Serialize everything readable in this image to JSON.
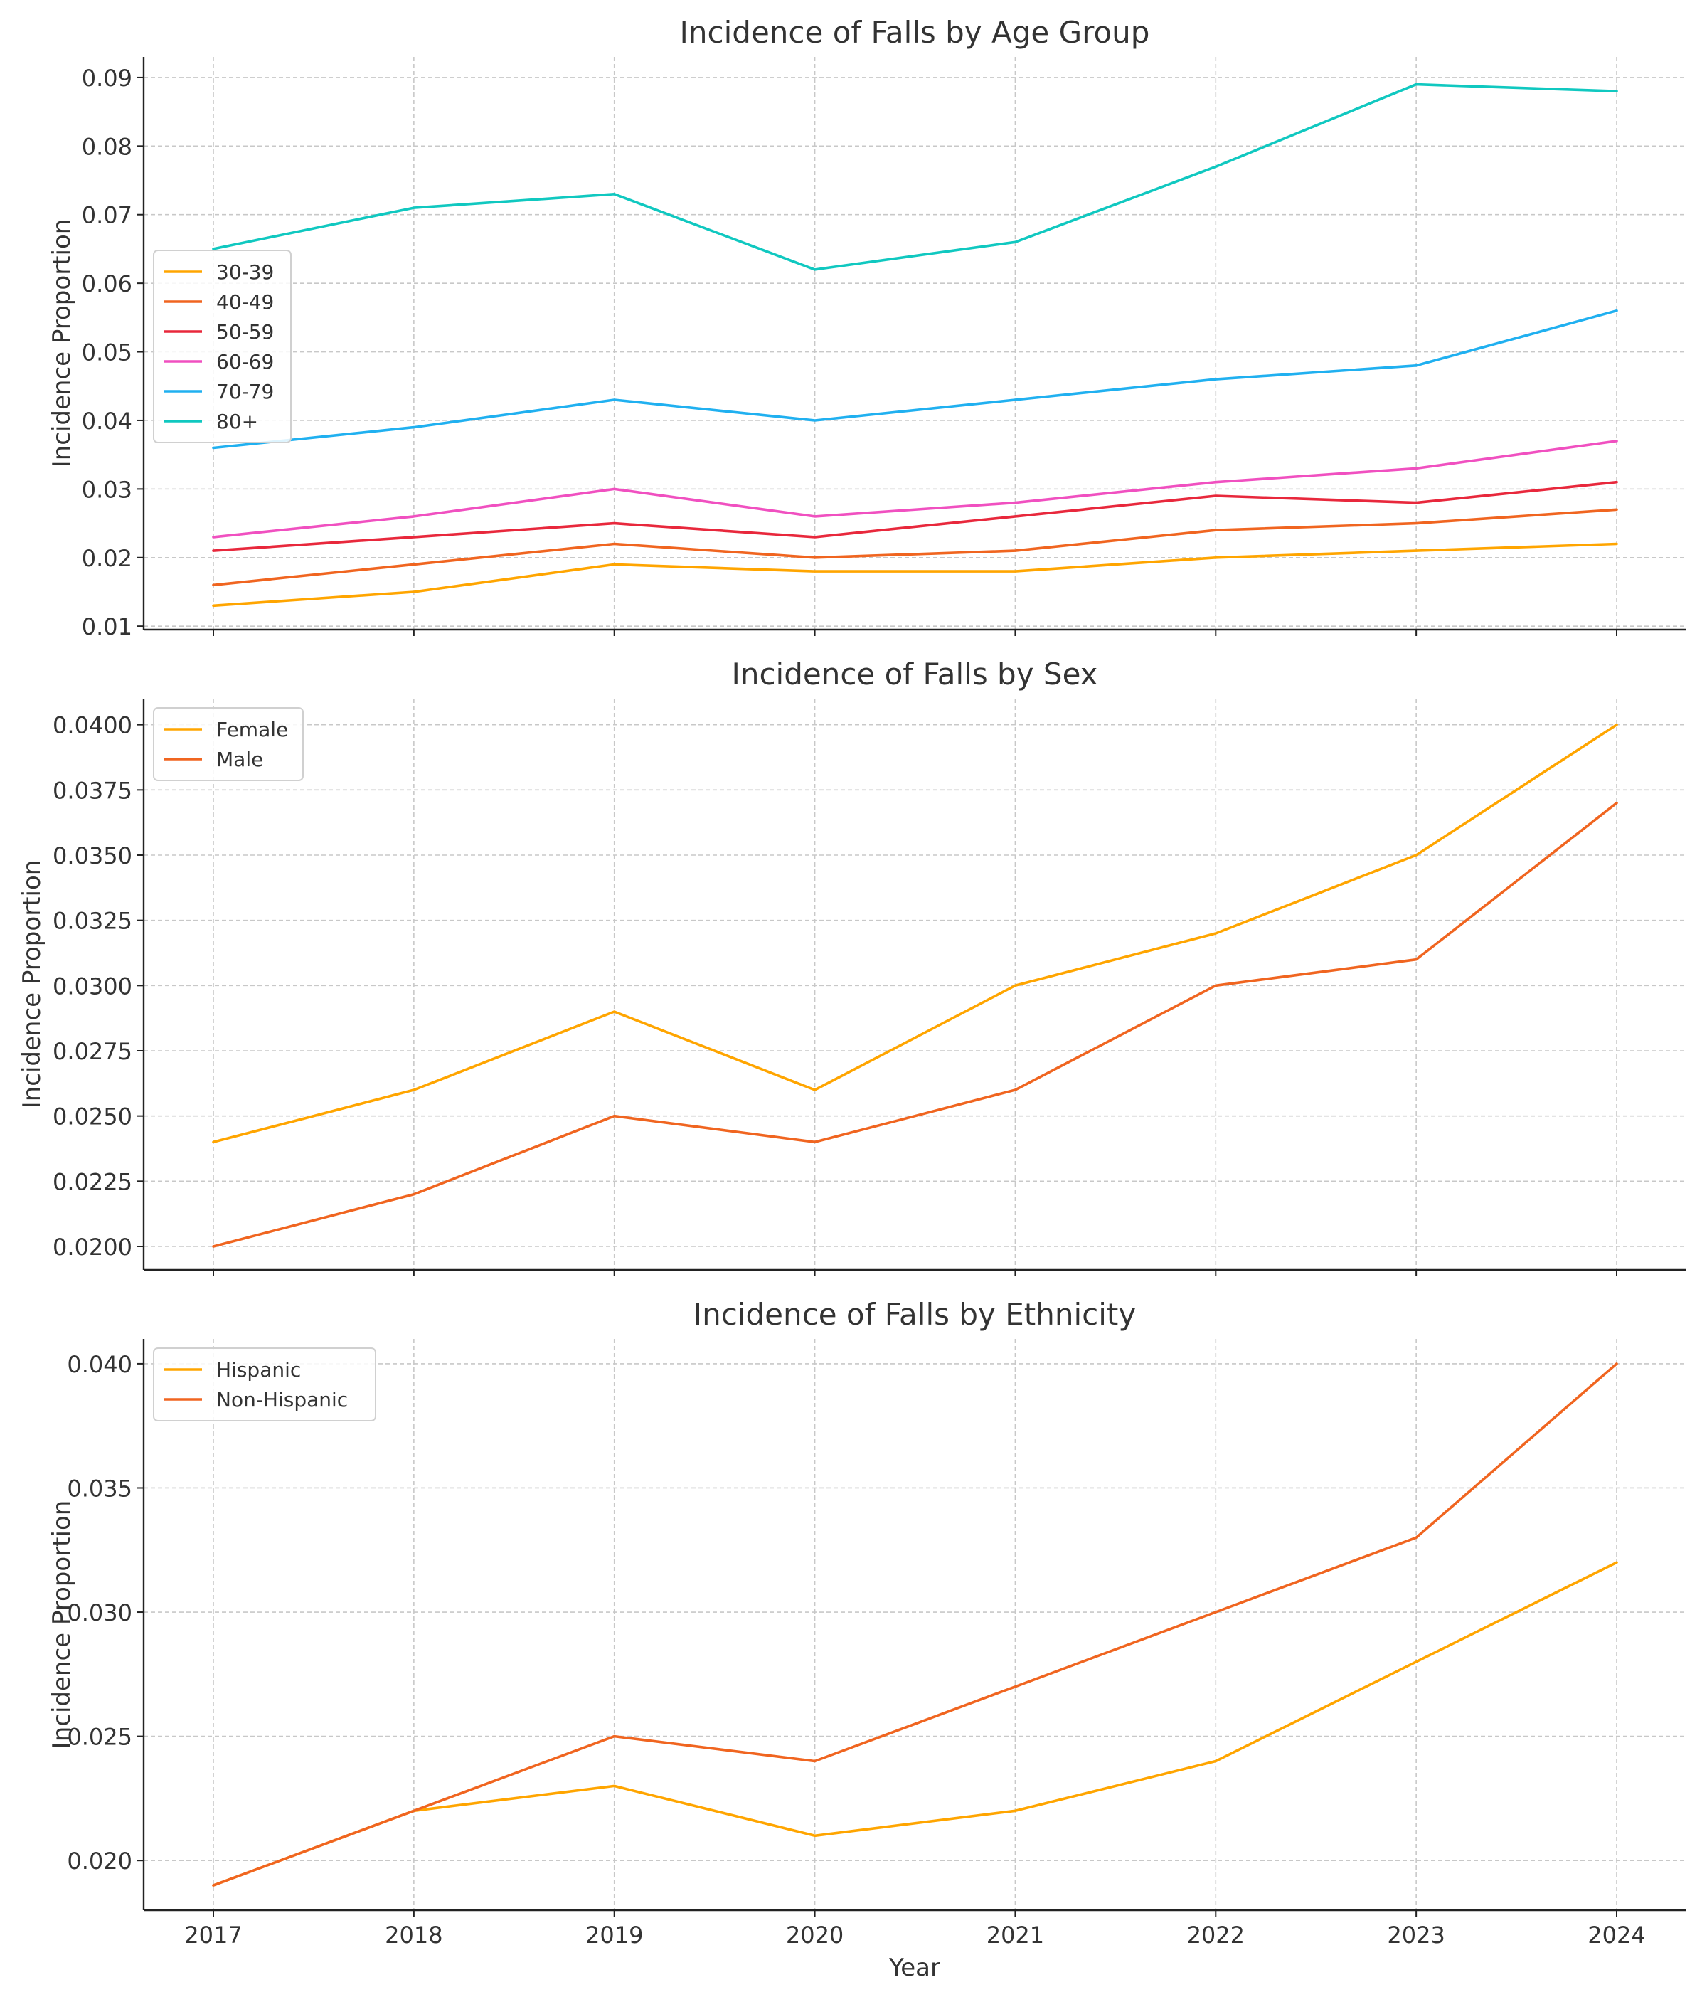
{
  "chart_data": [
    {
      "type": "line",
      "title": "Incidence of Falls by Age Group",
      "xlabel": "",
      "ylabel": "Incidence Proportion",
      "x": [
        2017,
        2018,
        2019,
        2020,
        2021,
        2022,
        2023,
        2024
      ],
      "ylim": [
        0.0095,
        0.093
      ],
      "yticks": [
        "0.01",
        "0.02",
        "0.03",
        "0.04",
        "0.05",
        "0.06",
        "0.07",
        "0.08",
        "0.09"
      ],
      "grid": true,
      "legend_position": "center-left",
      "series": [
        {
          "name": "30-39",
          "color": "#FFA500",
          "values": [
            0.013,
            0.015,
            0.019,
            0.018,
            0.018,
            0.02,
            0.021,
            0.022
          ]
        },
        {
          "name": "40-49",
          "color": "#F06520",
          "values": [
            0.016,
            0.019,
            0.022,
            0.02,
            0.021,
            0.024,
            0.025,
            0.027
          ]
        },
        {
          "name": "50-59",
          "color": "#E8283C",
          "values": [
            0.021,
            0.023,
            0.025,
            0.023,
            0.026,
            0.029,
            0.028,
            0.031
          ]
        },
        {
          "name": "60-69",
          "color": "#F050C0",
          "values": [
            0.023,
            0.026,
            0.03,
            0.026,
            0.028,
            0.031,
            0.033,
            0.037
          ]
        },
        {
          "name": "70-79",
          "color": "#20B0F0",
          "values": [
            0.036,
            0.039,
            0.043,
            0.04,
            0.043,
            0.046,
            0.048,
            0.056
          ]
        },
        {
          "name": "80+",
          "color": "#10C8C0",
          "values": [
            0.065,
            0.071,
            0.073,
            0.062,
            0.066,
            0.077,
            0.089,
            0.088
          ]
        }
      ]
    },
    {
      "type": "line",
      "title": "Incidence of Falls by Sex",
      "xlabel": "",
      "ylabel": "Incidence Proportion",
      "x": [
        2017,
        2018,
        2019,
        2020,
        2021,
        2022,
        2023,
        2024
      ],
      "ylim": [
        0.0191,
        0.041
      ],
      "yticks": [
        "0.0200",
        "0.0225",
        "0.0250",
        "0.0275",
        "0.0300",
        "0.0325",
        "0.0350",
        "0.0375",
        "0.0400"
      ],
      "grid": true,
      "legend_position": "upper-left",
      "series": [
        {
          "name": "Female",
          "color": "#FFA500",
          "values": [
            0.024,
            0.026,
            0.029,
            0.026,
            0.03,
            0.032,
            0.035,
            0.04
          ]
        },
        {
          "name": "Male",
          "color": "#F06520",
          "values": [
            0.02,
            0.022,
            0.025,
            0.024,
            0.026,
            0.03,
            0.031,
            0.037
          ]
        }
      ]
    },
    {
      "type": "line",
      "title": "Incidence of Falls by Ethnicity",
      "xlabel": "Year",
      "ylabel": "Incidence Proportion",
      "x": [
        2017,
        2018,
        2019,
        2020,
        2021,
        2022,
        2023,
        2024
      ],
      "ylim": [
        0.018,
        0.041
      ],
      "yticks": [
        "0.020",
        "0.025",
        "0.030",
        "0.035",
        "0.040"
      ],
      "grid": true,
      "legend_position": "upper-left",
      "series": [
        {
          "name": "Hispanic",
          "color": "#FFA500",
          "values": [
            0.019,
            0.022,
            0.023,
            0.021,
            0.022,
            0.024,
            0.028,
            0.032
          ]
        },
        {
          "name": "Non-Hispanic",
          "color": "#F06520",
          "values": [
            0.019,
            0.022,
            0.025,
            0.024,
            0.027,
            0.03,
            0.033,
            0.04
          ]
        }
      ]
    }
  ]
}
